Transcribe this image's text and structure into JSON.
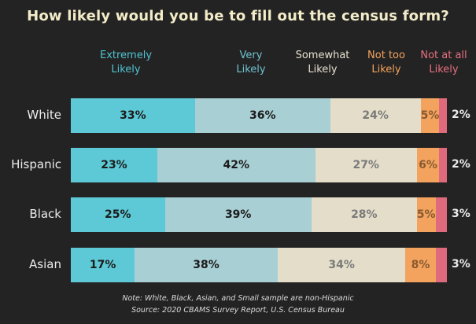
{
  "chart_data": {
    "type": "bar",
    "orientation": "horizontal",
    "stacked": true,
    "title": "How likely would you be to fill out the census form?",
    "categories": [
      "White",
      "Hispanic",
      "Black",
      "Asian"
    ],
    "series": [
      {
        "name": "Extremely Likely",
        "color": "#5ec9d6",
        "text_color": "#1b1b1b",
        "values": [
          33,
          23,
          25,
          17
        ]
      },
      {
        "name": "Very Likely",
        "color": "#a8cfd4",
        "text_color": "#1b1b1b",
        "values": [
          36,
          42,
          39,
          38
        ]
      },
      {
        "name": "Somewhat Likely",
        "color": "#e3ddc9",
        "text_color": "#7a7a7a",
        "values": [
          24,
          27,
          28,
          34
        ]
      },
      {
        "name": "Not too Likely",
        "color": "#f3a35e",
        "text_color": "#8a5a30",
        "values": [
          5,
          6,
          5,
          8
        ]
      },
      {
        "name": "Not at all Likely",
        "color": "#e06a7d",
        "text_color": "#ffffff",
        "values": [
          2,
          2,
          3,
          3
        ]
      }
    ],
    "legend_placement": "top",
    "value_labels": {
      "White": [
        "33%",
        "36%",
        "24%",
        "5%",
        "2%"
      ],
      "Hispanic": [
        "23%",
        "42%",
        "27%",
        "6%",
        "2%"
      ],
      "Black": [
        "25%",
        "39%",
        "28%",
        "5%",
        "3%"
      ],
      "Asian": [
        "17%",
        "38%",
        "34%",
        "8%",
        "3%"
      ]
    }
  },
  "legend": [
    {
      "line1": "Extremely",
      "line2": "Likely",
      "color": "#4ec3d1"
    },
    {
      "line1": "Very",
      "line2": "Likely",
      "color": "#6ec3cf"
    },
    {
      "line1": "Somewhat",
      "line2": "Likely",
      "color": "#e6e0ce"
    },
    {
      "line1": "Not too",
      "line2": "Likely",
      "color": "#f3a35e"
    },
    {
      "line1": "Not at all",
      "line2": "Likely",
      "color": "#e5707f"
    }
  ],
  "notes": {
    "line1": "Note: White, Black, Asian, and Small sample are non-Hispanic",
    "line2": "Source: 2020 CBAMS Survey Report, U.S. Census Bureau"
  }
}
